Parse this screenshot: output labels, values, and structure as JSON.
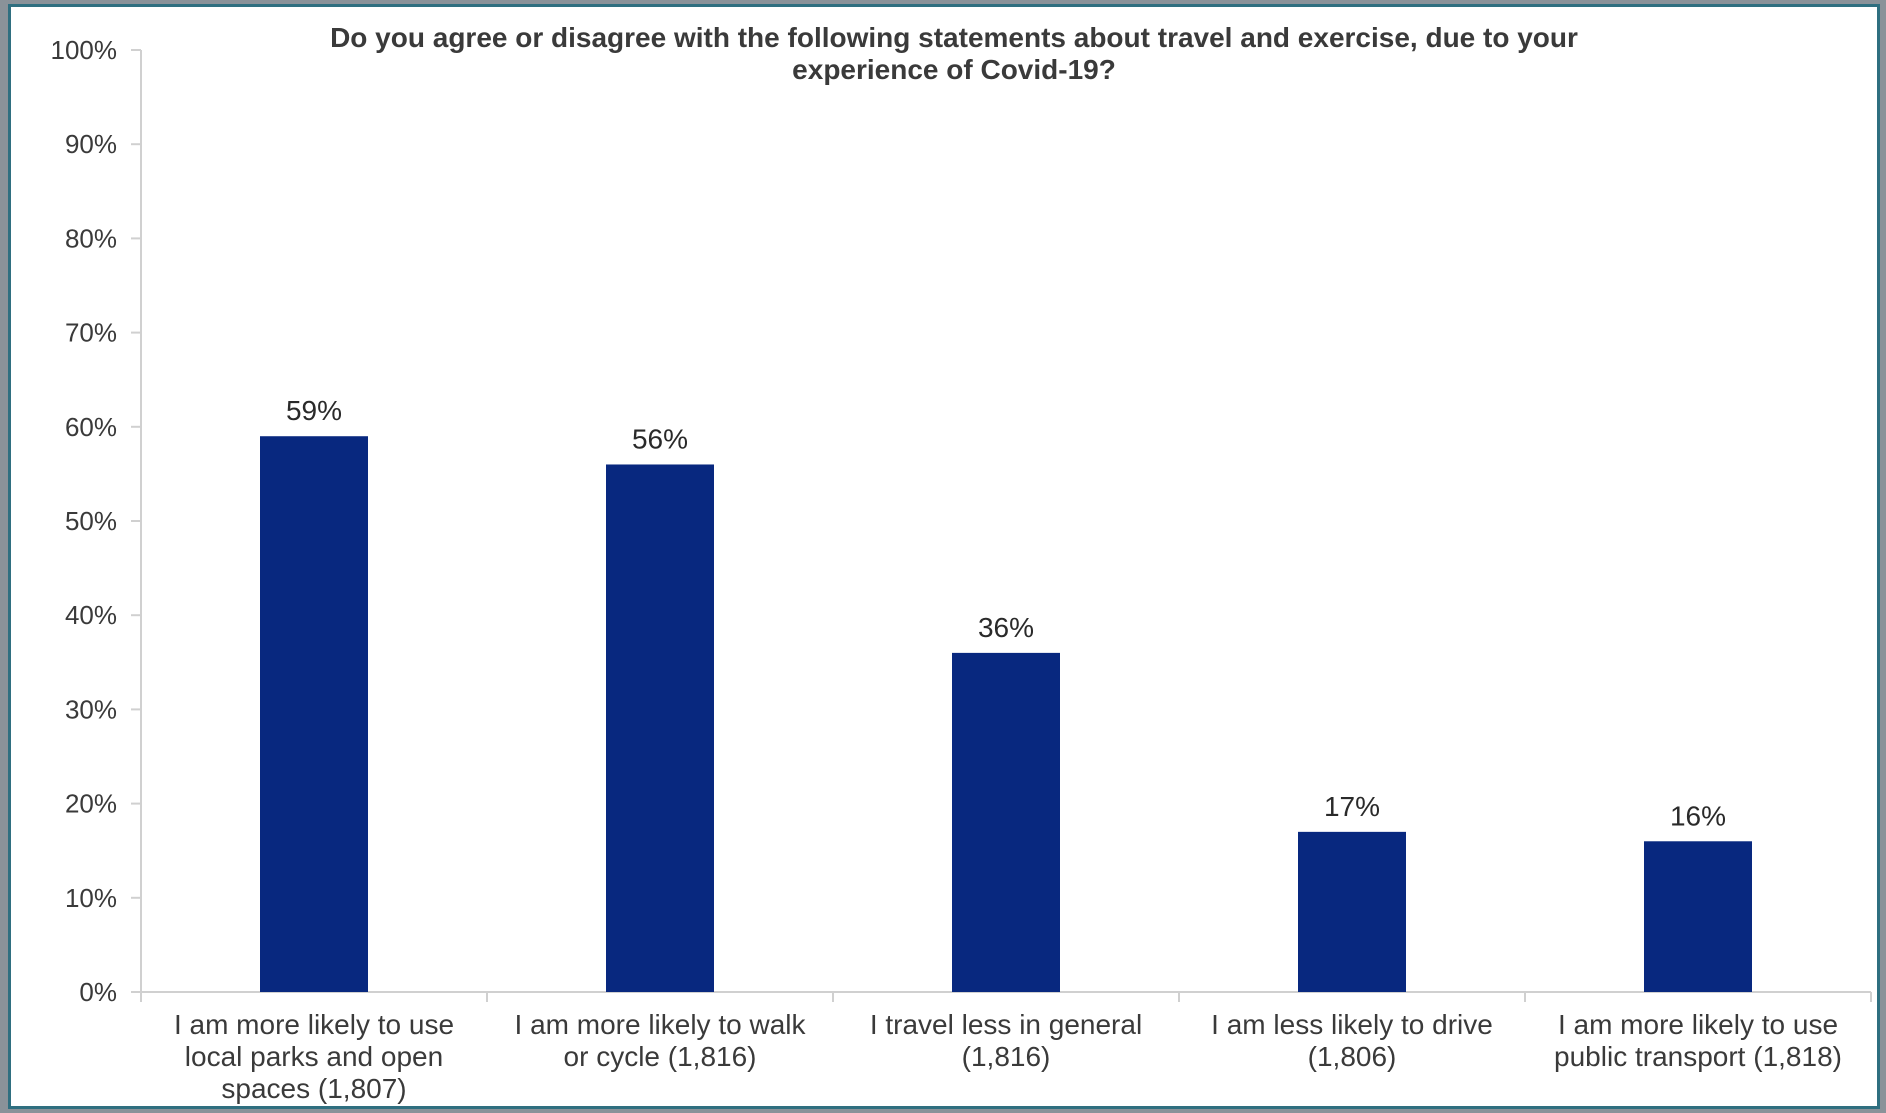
{
  "chart_data": {
    "type": "bar",
    "title": "Do you agree or disagree with the following statements about travel and exercise, due to your experience of Covid-19?",
    "title_lines": [
      "Do you agree or disagree with the following statements about travel and exercise, due to your",
      "experience of Covid-19?"
    ],
    "categories": [
      "I am more likely to use local parks and open spaces (1,807)",
      "I am more likely to walk or cycle (1,816)",
      "I travel less in general (1,816)",
      "I am less likely to drive (1,806)",
      "I am more likely to use public transport (1,818)"
    ],
    "category_lines": [
      [
        "I am more likely to use",
        "local parks and open",
        "spaces (1,807)"
      ],
      [
        "I am more likely to walk",
        "or cycle (1,816)"
      ],
      [
        "I travel less in general",
        "(1,816)"
      ],
      [
        "I am less likely to drive",
        "(1,806)"
      ],
      [
        "I am more likely to use",
        "public transport (1,818)"
      ]
    ],
    "values": [
      59,
      56,
      36,
      17,
      16
    ],
    "data_labels": [
      "59%",
      "56%",
      "36%",
      "17%",
      "16%"
    ],
    "ylim": [
      0,
      100
    ],
    "y_ticks": [
      "0%",
      "10%",
      "20%",
      "30%",
      "40%",
      "50%",
      "60%",
      "70%",
      "80%",
      "90%",
      "100%"
    ],
    "xlabel": "",
    "ylabel": "",
    "grid": false,
    "legend": "none",
    "bar_color": "#08287f",
    "axis_color": "#d0d0d0"
  }
}
